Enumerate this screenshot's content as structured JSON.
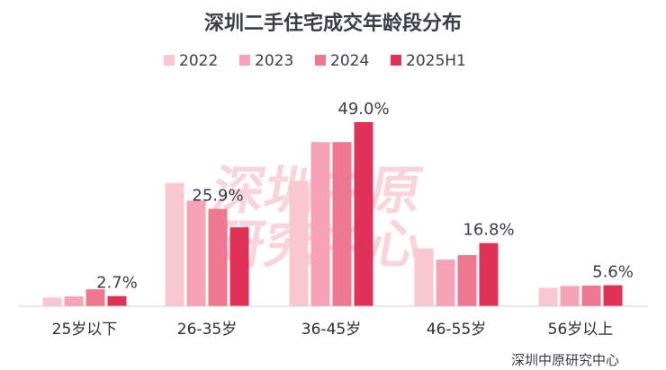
{
  "chart_data": {
    "type": "bar",
    "title": "深圳二手住宅成交年龄段分布",
    "categories": [
      "25岁以下",
      "26-35岁",
      "36-45岁",
      "46-55岁",
      "56岁以上"
    ],
    "series": [
      {
        "name": "2022",
        "color": "#f9c7d2",
        "values": [
          2.3,
          32.8,
          33.4,
          15.4,
          4.9
        ]
      },
      {
        "name": "2023",
        "color": "#f7a2b6",
        "values": [
          2.6,
          28.1,
          43.7,
          12.4,
          5.4
        ]
      },
      {
        "name": "2024",
        "color": "#ef7891",
        "values": [
          4.5,
          25.9,
          43.7,
          13.6,
          5.5
        ]
      },
      {
        "name": "2025H1",
        "color": "#e03256",
        "values": [
          2.7,
          21.0,
          49.0,
          16.8,
          5.6
        ]
      }
    ],
    "data_labels": [
      {
        "category_index": 0,
        "series_index": 3,
        "text": "2.7%"
      },
      {
        "category_index": 1,
        "series_index": 2,
        "text": "25.9%"
      },
      {
        "category_index": 2,
        "series_index": 3,
        "text": "49.0%"
      },
      {
        "category_index": 3,
        "series_index": 3,
        "text": "16.8%"
      },
      {
        "category_index": 4,
        "series_index": 3,
        "text": "5.6%"
      }
    ],
    "ylim": [
      0,
      52
    ],
    "xlabel": "",
    "ylabel": "",
    "grid": false,
    "legend_position": "top-center",
    "source": "深圳中原研究中心",
    "watermark": [
      "深圳中原",
      "研究中心"
    ]
  }
}
